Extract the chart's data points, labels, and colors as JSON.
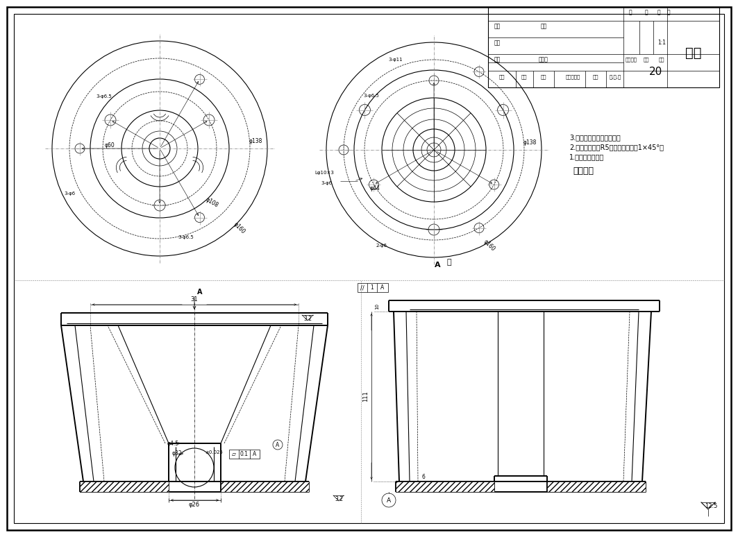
{
  "bg_color": "#ffffff",
  "line_color": "#000000",
  "title_part": "支架",
  "drawing_number": "20",
  "scale": "1:1",
  "tech_title": "技术要求",
  "tech_items": [
    "1.去除毛刺飞边；",
    "2.未注圆角半径R5，未注倒角均为1×45°；",
    "3.零件必须进行水割处理。"
  ],
  "surface_roughness": "12.5",
  "table_headers": [
    "标记",
    "处数",
    "分区",
    "更改文件号",
    "签名",
    "年,月,日"
  ]
}
